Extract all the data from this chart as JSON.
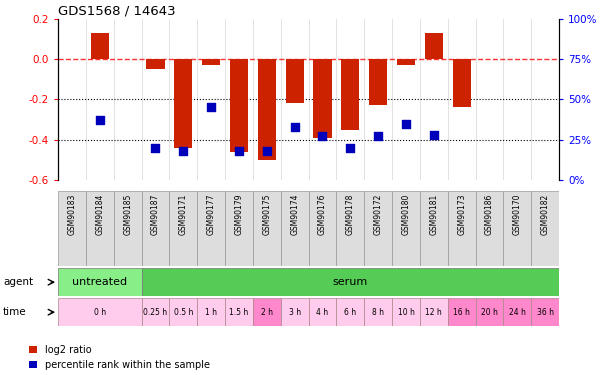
{
  "title": "GDS1568 / 14643",
  "samples": [
    "GSM90183",
    "GSM90184",
    "GSM90185",
    "GSM90187",
    "GSM90171",
    "GSM90177",
    "GSM90179",
    "GSM90175",
    "GSM90174",
    "GSM90176",
    "GSM90178",
    "GSM90172",
    "GSM90180",
    "GSM90181",
    "GSM90173",
    "GSM90186",
    "GSM90170",
    "GSM90182"
  ],
  "log2_ratio": [
    0.0,
    0.13,
    0.0,
    -0.05,
    -0.44,
    -0.03,
    -0.46,
    -0.5,
    -0.22,
    -0.39,
    -0.35,
    -0.23,
    -0.03,
    0.13,
    -0.24,
    0.0,
    0.0,
    0.0
  ],
  "percentile_rank_pct": [
    null,
    37,
    null,
    20,
    18,
    45,
    18,
    18,
    33,
    27,
    20,
    27,
    35,
    28,
    null,
    null,
    null,
    null
  ],
  "ylim_left": [
    -0.6,
    0.2
  ],
  "ylim_right": [
    0,
    100
  ],
  "yticks_left": [
    -0.6,
    -0.4,
    -0.2,
    0.0,
    0.2
  ],
  "yticks_right": [
    0,
    25,
    50,
    75,
    100
  ],
  "dotted_lines": [
    -0.4,
    -0.2
  ],
  "dashed_line": 0.0,
  "agent_groups": [
    {
      "label": "untreated",
      "start": 0,
      "end": 3,
      "color": "#88EE88"
    },
    {
      "label": "serum",
      "start": 3,
      "end": 18,
      "color": "#55CC55"
    }
  ],
  "time_groups": [
    {
      "label": "0 h",
      "start": 0,
      "end": 3,
      "color": "#FFCCEE"
    },
    {
      "label": "0.25 h",
      "start": 3,
      "end": 4,
      "color": "#FFCCEE"
    },
    {
      "label": "0.5 h",
      "start": 4,
      "end": 5,
      "color": "#FFCCEE"
    },
    {
      "label": "1 h",
      "start": 5,
      "end": 6,
      "color": "#FFCCEE"
    },
    {
      "label": "1.5 h",
      "start": 6,
      "end": 7,
      "color": "#FFCCEE"
    },
    {
      "label": "2 h",
      "start": 7,
      "end": 8,
      "color": "#FF88CC"
    },
    {
      "label": "3 h",
      "start": 8,
      "end": 9,
      "color": "#FFCCEE"
    },
    {
      "label": "4 h",
      "start": 9,
      "end": 10,
      "color": "#FFCCEE"
    },
    {
      "label": "6 h",
      "start": 10,
      "end": 11,
      "color": "#FFCCEE"
    },
    {
      "label": "8 h",
      "start": 11,
      "end": 12,
      "color": "#FFCCEE"
    },
    {
      "label": "10 h",
      "start": 12,
      "end": 13,
      "color": "#FFCCEE"
    },
    {
      "label": "12 h",
      "start": 13,
      "end": 14,
      "color": "#FFCCEE"
    },
    {
      "label": "16 h",
      "start": 14,
      "end": 15,
      "color": "#FF88CC"
    },
    {
      "label": "20 h",
      "start": 15,
      "end": 16,
      "color": "#FF88CC"
    },
    {
      "label": "24 h",
      "start": 16,
      "end": 17,
      "color": "#FF88CC"
    },
    {
      "label": "36 h",
      "start": 17,
      "end": 18,
      "color": "#FF88CC"
    }
  ],
  "bar_color": "#CC2200",
  "dot_color": "#0000BB",
  "bar_width": 0.65,
  "dot_size": 35,
  "legend_items": [
    {
      "label": "log2 ratio",
      "color": "#CC2200"
    },
    {
      "label": "percentile rank within the sample",
      "color": "#0000BB"
    }
  ]
}
